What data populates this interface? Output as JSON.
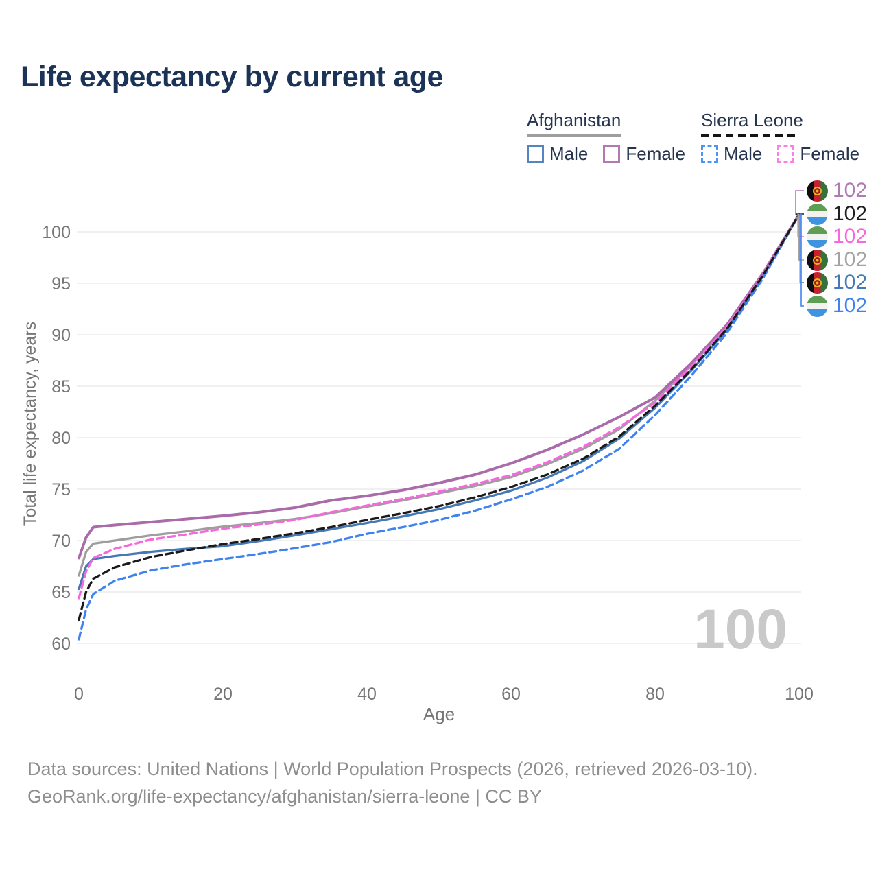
{
  "title": "Life expectancy by current age",
  "watermark": "100",
  "legend": {
    "groups": [
      {
        "country": "Afghanistan",
        "line_style": "solid",
        "underline_color": "#9e9e9e",
        "items": [
          {
            "label": "Male",
            "color": "#5585c0",
            "dashed": false
          },
          {
            "label": "Female",
            "color": "#b379b1",
            "dashed": false
          }
        ]
      },
      {
        "country": "Sierra Leone",
        "line_style": "dashed",
        "underline_color": "#151515",
        "items": [
          {
            "label": "Male",
            "color": "#4d94f7",
            "dashed": true
          },
          {
            "label": "Female",
            "color": "#fb80e4",
            "dashed": true
          }
        ]
      }
    ]
  },
  "end_labels": [
    {
      "flag": "afghanistan",
      "series": "Afghanistan Female",
      "value": "102",
      "color": "#b07ab3"
    },
    {
      "flag": "sierra-leone",
      "series": "Sierra Leone Both sexes",
      "value": "102",
      "color": "#1f1f1f"
    },
    {
      "flag": "sierra-leone",
      "series": "Sierra Leone Female",
      "value": "102",
      "color": "#f768df"
    },
    {
      "flag": "afghanistan",
      "series": "Afghanistan Both sexes",
      "value": "102",
      "color": "#a3a3a3"
    },
    {
      "flag": "afghanistan",
      "series": "Afghanistan Male",
      "value": "102",
      "color": "#4678b5"
    },
    {
      "flag": "sierra-leone",
      "series": "Sierra Leone Male",
      "value": "102",
      "color": "#3f83f1"
    }
  ],
  "chart_data": {
    "type": "line",
    "title": "Life expectancy by current age",
    "xlabel": "Age",
    "ylabel": "Total life expectancy, years",
    "xlim": [
      0,
      100
    ],
    "ylim": [
      60,
      103
    ],
    "x_ticks": [
      0,
      20,
      40,
      60,
      80,
      100
    ],
    "y_ticks": [
      60,
      65,
      70,
      75,
      80,
      85,
      90,
      95,
      100
    ],
    "grid": true,
    "legend_position": "top-right",
    "x": [
      0,
      1,
      2,
      5,
      10,
      15,
      20,
      25,
      30,
      35,
      40,
      45,
      50,
      55,
      60,
      65,
      70,
      75,
      80,
      85,
      90,
      95,
      100
    ],
    "series": [
      {
        "name": "Afghanistan Female",
        "color": "#a96ba9",
        "dash": "solid",
        "values": [
          68.3,
          70.3,
          71.3,
          71.5,
          71.8,
          72.1,
          72.4,
          72.75,
          73.2,
          73.9,
          74.35,
          74.9,
          75.6,
          76.4,
          77.5,
          78.8,
          80.3,
          82.0,
          83.9,
          87.2,
          91.0,
          96.0,
          101.7
        ]
      },
      {
        "name": "Sierra Leone Female",
        "color": "#f768df",
        "dash": "dashed",
        "values": [
          64.4,
          67.0,
          68.3,
          69.2,
          70.1,
          70.6,
          71.15,
          71.55,
          72.0,
          72.75,
          73.4,
          74.05,
          74.75,
          75.5,
          76.35,
          77.6,
          79.1,
          81.0,
          83.4,
          86.9,
          90.8,
          95.9,
          101.7
        ]
      },
      {
        "name": "Afghanistan Both sexes",
        "color": "#9e9e9e",
        "dash": "solid",
        "values": [
          66.6,
          68.9,
          69.7,
          70.0,
          70.5,
          70.9,
          71.35,
          71.7,
          72.1,
          72.65,
          73.3,
          73.9,
          74.6,
          75.3,
          76.15,
          77.4,
          78.9,
          80.8,
          83.6,
          87.0,
          90.8,
          95.9,
          101.7
        ]
      },
      {
        "name": "Sierra Leone Both sexes",
        "color": "#1a1a1a",
        "dash": "dashed",
        "values": [
          62.3,
          65.0,
          66.3,
          67.4,
          68.4,
          69.05,
          69.65,
          70.15,
          70.7,
          71.3,
          72.0,
          72.65,
          73.35,
          74.2,
          75.2,
          76.4,
          77.95,
          80.1,
          83.1,
          86.6,
          90.6,
          95.8,
          101.7
        ]
      },
      {
        "name": "Afghanistan Male",
        "color": "#4678b5",
        "dash": "solid",
        "values": [
          65.3,
          67.5,
          68.2,
          68.5,
          68.9,
          69.2,
          69.45,
          69.95,
          70.5,
          71.1,
          71.7,
          72.35,
          73.05,
          73.9,
          74.85,
          76.1,
          77.7,
          79.9,
          82.9,
          86.5,
          90.5,
          95.7,
          101.7
        ]
      },
      {
        "name": "Sierra Leone Male",
        "color": "#3f83f1",
        "dash": "dashed",
        "values": [
          60.4,
          63.3,
          64.8,
          66.1,
          67.1,
          67.7,
          68.2,
          68.7,
          69.25,
          69.85,
          70.65,
          71.3,
          72.0,
          72.9,
          74.0,
          75.2,
          76.8,
          78.9,
          82.2,
          86.0,
          90.2,
          95.5,
          101.7
        ]
      }
    ]
  },
  "footer": {
    "line1": "Data sources: United Nations | World Population Prospects (2026, retrieved 2026-03-10).",
    "line2": "GeoRank.org/life-expectancy/afghanistan/sierra-leone | CC BY"
  }
}
